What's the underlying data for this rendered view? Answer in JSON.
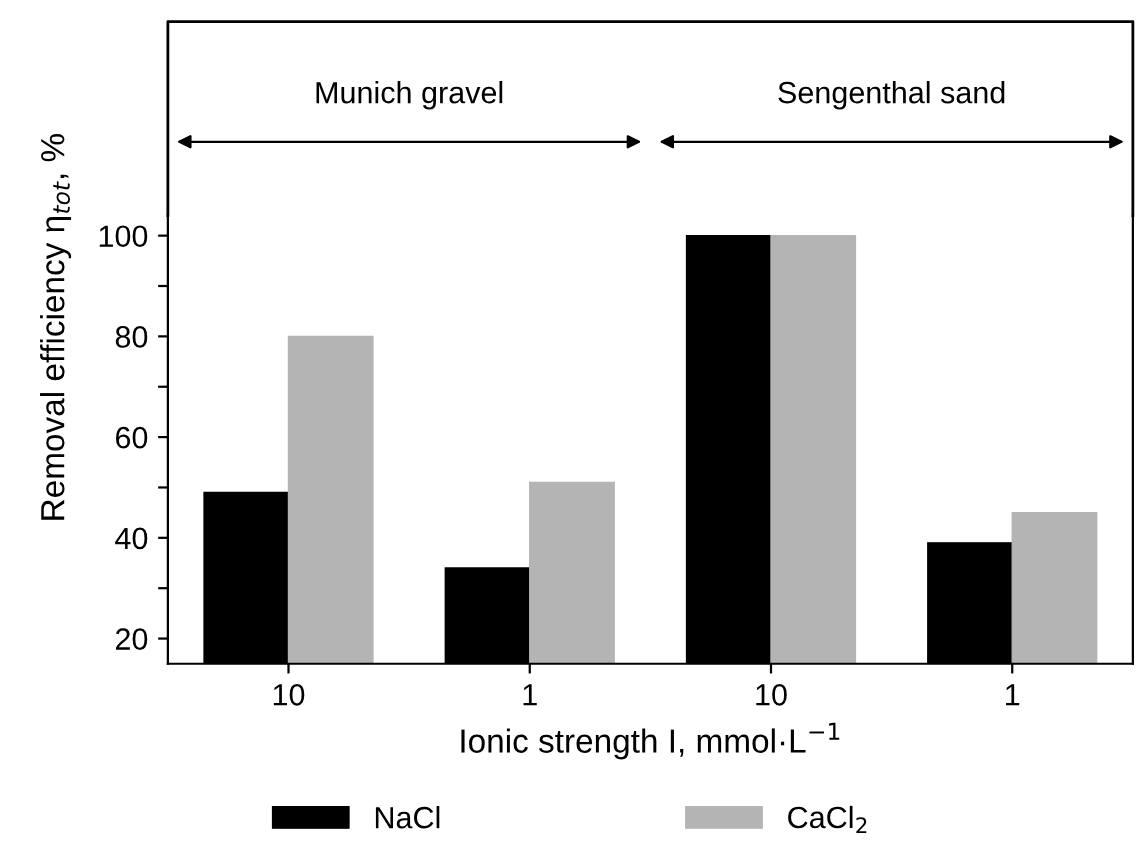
{
  "chart_data": {
    "type": "bar",
    "categories": [
      "10",
      "1",
      "10",
      "1"
    ],
    "series": [
      {
        "name": "NaCl",
        "color": "#000000",
        "values": [
          49,
          34,
          100,
          39
        ]
      },
      {
        "name": "CaCl$_{2}$",
        "color": "#b4b4b4",
        "values": [
          80,
          51,
          100,
          45
        ]
      }
    ],
    "xlabel": "Ionic strength I, mmol·L$^{−1}$",
    "ylabel": "Removal efficiency η$_{tot}$, %",
    "ylim": [
      15,
      104
    ],
    "yticks": [
      20,
      {
        "value": 30,
        "label": null
      },
      40,
      {
        "value": 50,
        "label": null
      },
      60,
      {
        "value": 70,
        "label": null
      },
      80,
      {
        "value": 90,
        "label": null
      },
      100
    ],
    "annotations": [
      "Munich gravel",
      "Sengenthal sand"
    ],
    "legend": "bottom",
    "grid": false
  }
}
